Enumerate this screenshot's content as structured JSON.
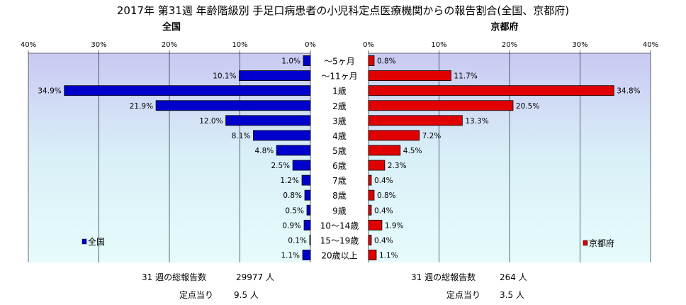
{
  "title": "2017年 第31週 年齢階級別 手足口病患者の小児科定点医療機関からの報告割合(全国、京都府)",
  "chart_data": [
    {
      "type": "bar",
      "orientation": "horizontal",
      "direction": "right-to-left",
      "title": "全国",
      "xlim": [
        0,
        40
      ],
      "ticks": [
        "40%",
        "30%",
        "20%",
        "10%",
        "0%"
      ],
      "categories": [
        "～5ヶ月",
        "～11ヶ月",
        "1歳",
        "2歳",
        "3歳",
        "4歳",
        "5歳",
        "6歳",
        "7歳",
        "8歳",
        "9歳",
        "10～14歳",
        "15～19歳",
        "20歳以上"
      ],
      "series": [
        {
          "name": "全国",
          "color": "#0000cc",
          "values": [
            1.0,
            10.1,
            34.9,
            21.9,
            12.0,
            8.1,
            4.8,
            2.5,
            1.2,
            0.8,
            0.5,
            0.9,
            0.1,
            1.1
          ]
        }
      ],
      "legend_position": "bottom-left",
      "data_labels": true,
      "grid": true
    },
    {
      "type": "bar",
      "orientation": "horizontal",
      "direction": "left-to-right",
      "title": "京都府",
      "xlim": [
        0,
        40
      ],
      "ticks": [
        "0%",
        "10%",
        "20%",
        "30%",
        "40%"
      ],
      "categories": [
        "～5ヶ月",
        "～11ヶ月",
        "1歳",
        "2歳",
        "3歳",
        "4歳",
        "5歳",
        "6歳",
        "7歳",
        "8歳",
        "9歳",
        "10～14歳",
        "15～19歳",
        "20歳以上"
      ],
      "series": [
        {
          "name": "京都府",
          "color": "#e00000",
          "values": [
            0.8,
            11.7,
            34.8,
            20.5,
            13.3,
            7.2,
            4.5,
            2.3,
            0.4,
            0.8,
            0.4,
            1.9,
            0.4,
            1.1
          ]
        }
      ],
      "legend_position": "bottom-right",
      "data_labels": true,
      "grid": true
    }
  ],
  "footer": {
    "national": {
      "reports_label": "31 週の総報告数",
      "reports_value": "29977 人",
      "per_site_label": "定点当り",
      "per_site_value": "9.5 人"
    },
    "kyoto": {
      "reports_label": "31 週の総報告数",
      "reports_value": "264 人",
      "per_site_label": "定点当り",
      "per_site_value": "3.5 人"
    }
  }
}
